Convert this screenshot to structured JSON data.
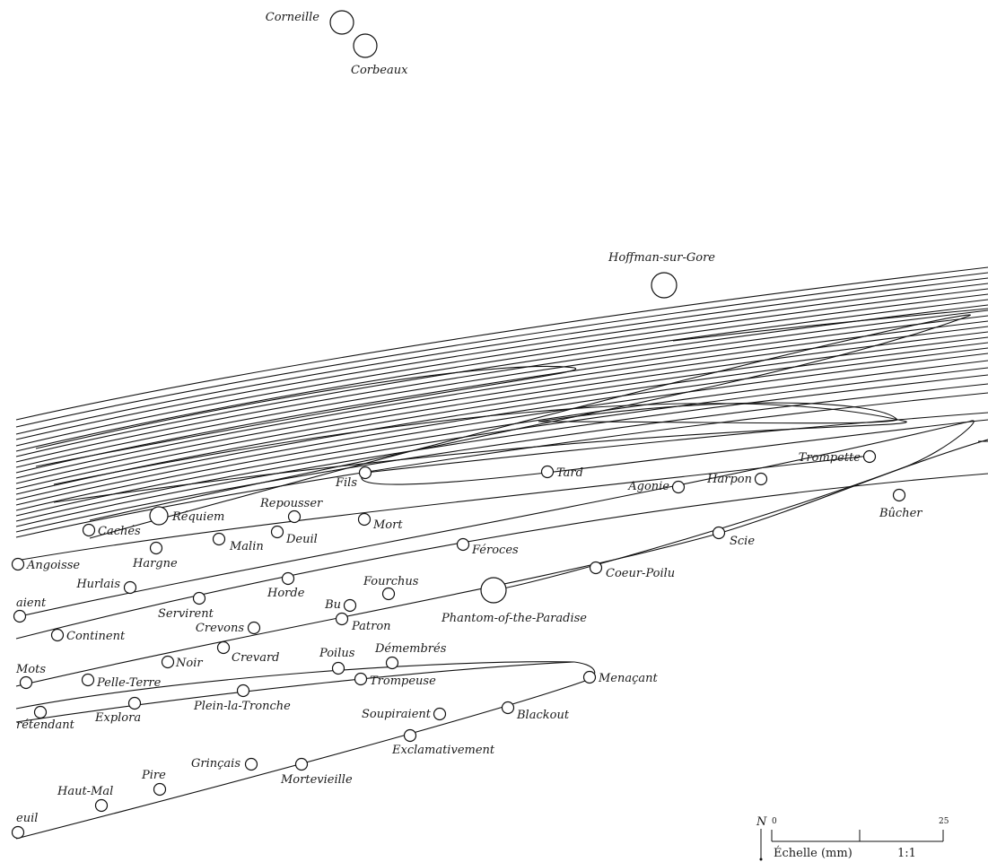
{
  "map": {
    "stops": [
      {
        "id": "corneille",
        "name": "Corneille",
        "big": true
      },
      {
        "id": "corbeaux",
        "name": "Corbeaux",
        "big": true
      },
      {
        "id": "hoffman-sur-gore",
        "name": "Hoffman-sur-Gore",
        "big": true
      },
      {
        "id": "fils",
        "name": "Fils"
      },
      {
        "id": "tard",
        "name": "Tard"
      },
      {
        "id": "trompette",
        "name": "Trompette"
      },
      {
        "id": "agonie",
        "name": "Agonie"
      },
      {
        "id": "harpon",
        "name": "Harpon"
      },
      {
        "id": "bucher",
        "name": "Bûcher"
      },
      {
        "id": "repousser",
        "name": "Repousser"
      },
      {
        "id": "requiem",
        "name": "Réquiem",
        "big": true
      },
      {
        "id": "caches",
        "name": "Cachés"
      },
      {
        "id": "malin",
        "name": "Malin"
      },
      {
        "id": "deuil",
        "name": "Deuil"
      },
      {
        "id": "mort",
        "name": "Mort"
      },
      {
        "id": "feroces",
        "name": "Féroces"
      },
      {
        "id": "scie",
        "name": "Scie"
      },
      {
        "id": "hargne",
        "name": "Hargne"
      },
      {
        "id": "angoisse",
        "name": "Angoisse"
      },
      {
        "id": "coeur-poilu",
        "name": "Coeur-Poilu"
      },
      {
        "id": "hurlais",
        "name": "Hurlais"
      },
      {
        "id": "horde",
        "name": "Horde"
      },
      {
        "id": "fourchus",
        "name": "Fourchus"
      },
      {
        "id": "phantom",
        "name": "Phantom-of-the-Paradise",
        "big": true
      },
      {
        "id": "servirent",
        "name": "Servirent"
      },
      {
        "id": "aient",
        "name": "aient"
      },
      {
        "id": "bu",
        "name": "Bu"
      },
      {
        "id": "patron",
        "name": "Patron"
      },
      {
        "id": "crevons",
        "name": "Crevons"
      },
      {
        "id": "continent",
        "name": "Continent"
      },
      {
        "id": "crevard",
        "name": "Crevard"
      },
      {
        "id": "noir",
        "name": "Noir"
      },
      {
        "id": "mots",
        "name": "Mots"
      },
      {
        "id": "poilus",
        "name": "Poilus"
      },
      {
        "id": "demembres",
        "name": "Démembrés"
      },
      {
        "id": "pelle-terre",
        "name": "Pelle-Terre"
      },
      {
        "id": "trompeuse",
        "name": "Trompeuse"
      },
      {
        "id": "menacant",
        "name": "Menaçant"
      },
      {
        "id": "explora",
        "name": "Explora"
      },
      {
        "id": "plein-la-tronche",
        "name": "Plein-la-Tronche"
      },
      {
        "id": "pretendant",
        "name": "rétendant"
      },
      {
        "id": "soupiraient",
        "name": "Soupiraient"
      },
      {
        "id": "blackout",
        "name": "Blackout"
      },
      {
        "id": "exclamativement",
        "name": "Exclamativement"
      },
      {
        "id": "grincais",
        "name": "Grinçais"
      },
      {
        "id": "mortevieille",
        "name": "Mortevieille"
      },
      {
        "id": "pire",
        "name": "Pire"
      },
      {
        "id": "haut-mal",
        "name": "Haut-Mal"
      },
      {
        "id": "euil",
        "name": "euil"
      }
    ]
  },
  "scale": {
    "north": "N",
    "start": "0",
    "end": "25",
    "label": "Échelle (mm)",
    "ratio": "1:1"
  }
}
